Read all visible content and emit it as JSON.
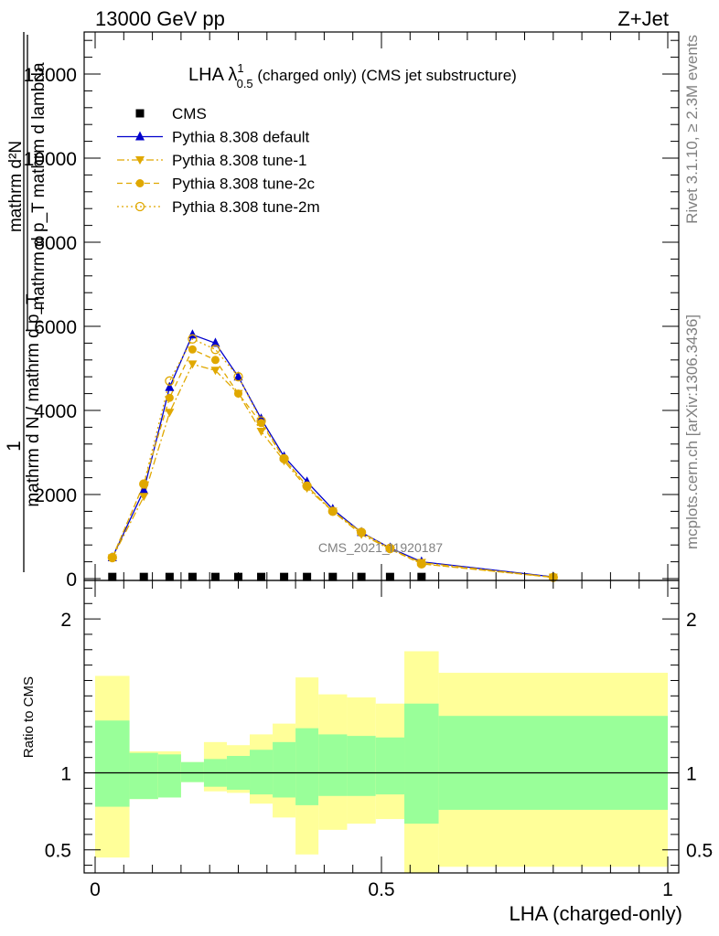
{
  "header": {
    "left": "13000 GeV pp",
    "right": "Z+Jet"
  },
  "side_labels": {
    "rivet": "Rivet 3.1.10, ≥ 2.3M events",
    "mcplots": "mcplots.cern.ch [arXiv:1306.3436]"
  },
  "watermark": "CMS_2021_I1920187",
  "chart_data": [
    {
      "type": "line",
      "title_main": "LHA λ",
      "title_sup": "1",
      "title_sub": "0.5",
      "title_rest": " (charged only) (CMS jet substructure)",
      "xlabel": "LHA (charged-only)",
      "ylabel_numerator": "1",
      "ylabel_denominator": "mathrm d N / mathrm d p_T",
      "ylabel_rhs_top": "mathrm d²N",
      "ylabel_rhs_bottom": "mathrm d p_T mathrm d lambda",
      "xlim": [
        0,
        1
      ],
      "ylim": [
        0,
        13000
      ],
      "yticks": [
        0,
        2000,
        4000,
        6000,
        8000,
        10000,
        12000
      ],
      "ytick_labels": [
        "0",
        "2000",
        "4000",
        "6000",
        "8000",
        "10000",
        "12000"
      ],
      "x": [
        0.03,
        0.085,
        0.13,
        0.17,
        0.21,
        0.25,
        0.29,
        0.33,
        0.37,
        0.415,
        0.465,
        0.515,
        0.57,
        0.8
      ],
      "series": [
        {
          "name": "CMS",
          "color": "#000000",
          "marker": "square",
          "values": [
            40,
            40,
            40,
            40,
            40,
            40,
            40,
            40,
            40,
            40,
            40,
            40,
            40,
            null
          ]
        },
        {
          "name": "Pythia 8.308 default",
          "color": "#0000cc",
          "marker": "triangle-up",
          "line": "solid",
          "values": [
            500,
            2100,
            4550,
            5800,
            5600,
            4800,
            3800,
            2900,
            2300,
            1650,
            1100,
            730,
            400,
            40
          ]
        },
        {
          "name": "Pythia 8.308 tune-1",
          "color": "#e0a800",
          "marker": "triangle-down",
          "line": "dashdot",
          "values": [
            490,
            1950,
            3950,
            5100,
            4950,
            4400,
            3500,
            2800,
            2150,
            1600,
            1050,
            700,
            380,
            30
          ]
        },
        {
          "name": "Pythia 8.308 tune-2c",
          "color": "#e0a800",
          "marker": "circle",
          "line": "dashed",
          "values": [
            500,
            2250,
            4300,
            5450,
            5200,
            4400,
            3700,
            2850,
            2200,
            1600,
            1100,
            700,
            350,
            30
          ]
        },
        {
          "name": "Pythia 8.308 tune-2m",
          "color": "#e0a800",
          "marker": "circle-open",
          "line": "dotted",
          "values": [
            500,
            2250,
            4700,
            5700,
            5450,
            4800,
            3750,
            2850,
            2200,
            1600,
            1100,
            720,
            350,
            30
          ]
        }
      ]
    },
    {
      "type": "area",
      "ylabel": "Ratio to CMS",
      "xlim": [
        0,
        1
      ],
      "ylim": [
        0.35,
        2.25
      ],
      "yticks": [
        0.5,
        1,
        2
      ],
      "ytick_labels": [
        "0.5",
        "1",
        "2"
      ],
      "xticks": [
        0,
        0.5,
        1
      ],
      "xtick_labels": [
        "0",
        "0.5",
        "1"
      ],
      "bin_edges": [
        0.0,
        0.06,
        0.11,
        0.15,
        0.19,
        0.23,
        0.27,
        0.31,
        0.35,
        0.39,
        0.44,
        0.49,
        0.54,
        0.6,
        1.0
      ],
      "green_band": {
        "lo": [
          0.78,
          0.83,
          0.84,
          0.94,
          0.91,
          0.89,
          0.86,
          0.84,
          0.79,
          0.85,
          0.85,
          0.86,
          0.67,
          0.76
        ],
        "hi": [
          1.34,
          1.13,
          1.12,
          1.07,
          1.09,
          1.11,
          1.15,
          1.2,
          1.29,
          1.25,
          1.24,
          1.23,
          1.45,
          1.37
        ]
      },
      "yellow_band": {
        "lo": [
          0.45,
          0.83,
          0.84,
          0.94,
          0.88,
          0.87,
          0.8,
          0.71,
          0.47,
          0.63,
          0.67,
          0.7,
          0.35,
          0.39
        ],
        "hi": [
          1.63,
          1.14,
          1.14,
          1.07,
          1.2,
          1.18,
          1.25,
          1.32,
          1.62,
          1.51,
          1.49,
          1.45,
          1.79,
          1.65
        ]
      },
      "colors": {
        "green": "#99ff99",
        "yellow": "#ffff99"
      }
    }
  ]
}
